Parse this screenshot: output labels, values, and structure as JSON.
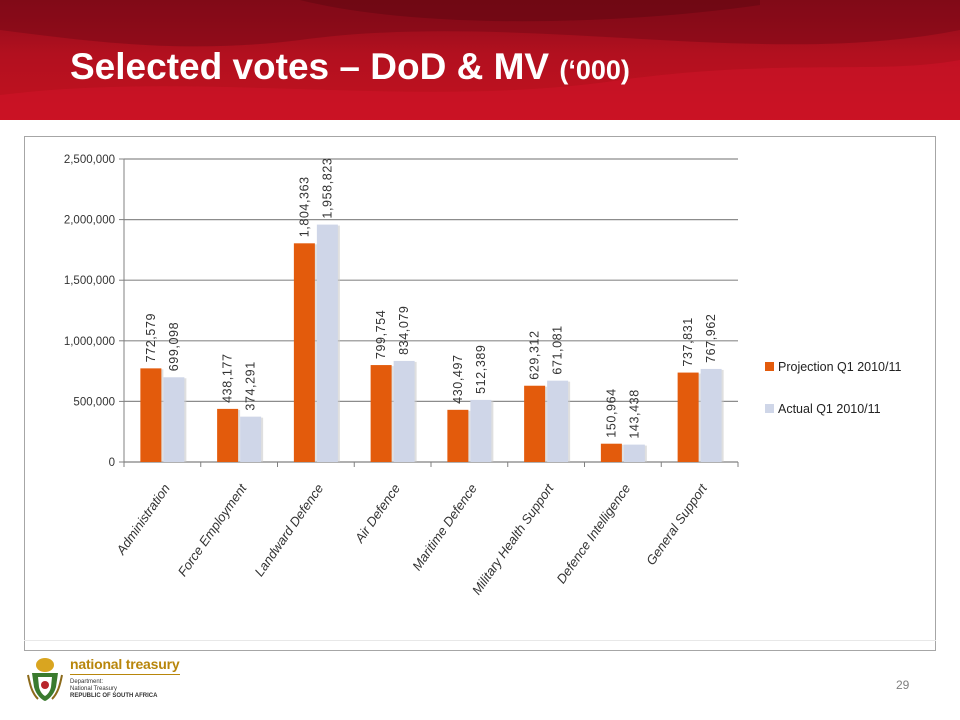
{
  "slide": {
    "title": "Selected votes – DoD & MV",
    "title_unit": "(‘000)",
    "page_number": "29"
  },
  "logo": {
    "name": "national treasury",
    "line1": "Department:",
    "line2": "National Treasury",
    "line3": "REPUBLIC OF SOUTH AFRICA"
  },
  "colors": {
    "header": "#b2101f",
    "projection": "#e35b0c",
    "actual": "#cfd6e8",
    "gridline": "#808080"
  },
  "chart_data": {
    "type": "bar",
    "title": "",
    "xlabel": "",
    "ylabel": "",
    "ylim": [
      0,
      2500000
    ],
    "yticks": [
      0,
      500000,
      1000000,
      1500000,
      2000000,
      2500000
    ],
    "ytick_labels": [
      "0",
      "500,000",
      "1,000,000",
      "1,500,000",
      "2,000,000",
      "2,500,000"
    ],
    "grid": true,
    "legend_position": "right",
    "categories": [
      "Administration",
      "Force Employment",
      "Landward Defence",
      "Air Defence",
      "Maritime Defence",
      "Military Health Support",
      "Defence Intelligence",
      "General Support"
    ],
    "series": [
      {
        "name": "Projection Q1 2010/11",
        "color": "#e35b0c",
        "values": [
          772579,
          438177,
          1804363,
          799754,
          430497,
          629312,
          150964,
          737831
        ],
        "labels": [
          "772,579",
          "438,177",
          "1,804,363",
          "799,754",
          "430,497",
          "629,312",
          "150,964",
          "737,831"
        ]
      },
      {
        "name": "Actual Q1 2010/11",
        "color": "#cfd6e8",
        "values": [
          699098,
          374291,
          1958823,
          834079,
          512389,
          671081,
          143438,
          767962
        ],
        "labels": [
          "699,098",
          "374,291",
          "1,958,823",
          "834,079",
          "512,389",
          "671,081",
          "143,438",
          "767,962"
        ]
      }
    ]
  }
}
